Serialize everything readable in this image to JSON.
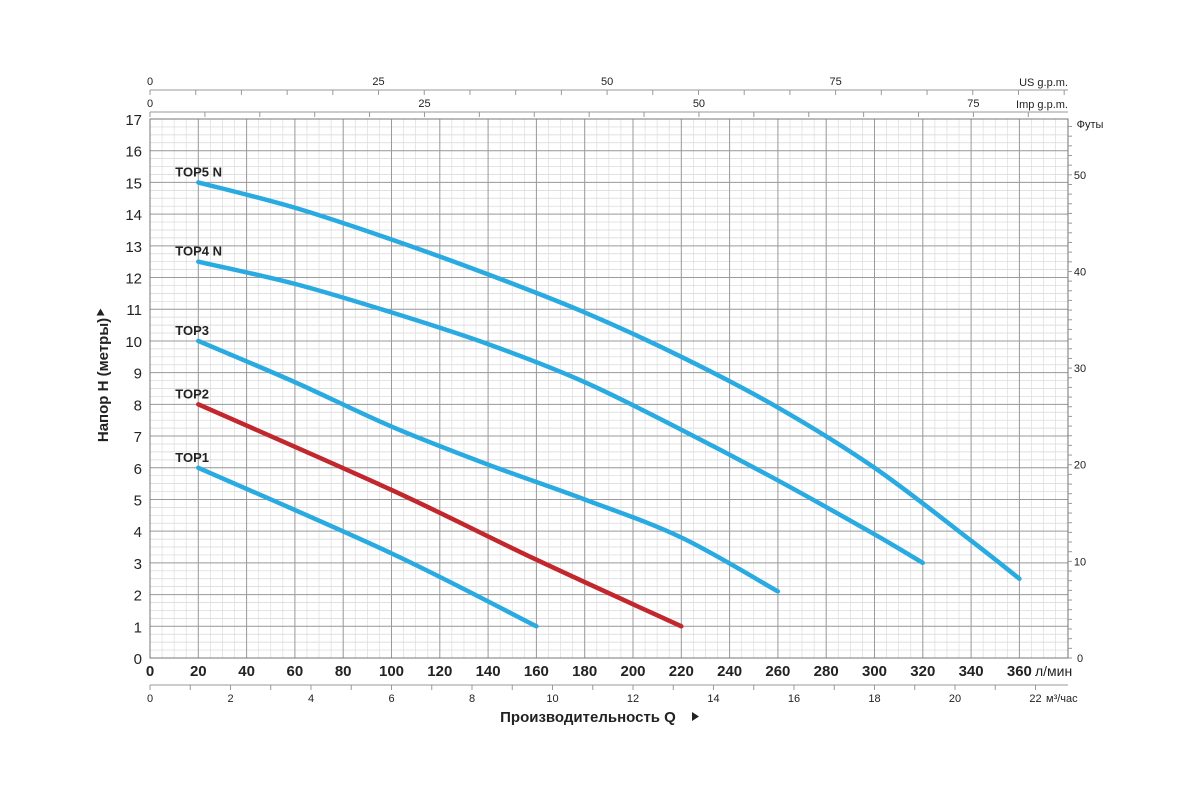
{
  "chart_data": {
    "type": "line",
    "xlabel": "Производительность Q",
    "ylabel": "Напор H (метры)",
    "x_unit": "л/мин",
    "x_range": [
      0,
      380
    ],
    "x_ticks": [
      0,
      20,
      40,
      60,
      80,
      100,
      120,
      140,
      160,
      180,
      200,
      220,
      240,
      260,
      280,
      300,
      320,
      340,
      360
    ],
    "y_range": [
      0,
      17
    ],
    "y_ticks": [
      0,
      1,
      2,
      3,
      4,
      5,
      6,
      7,
      8,
      9,
      10,
      11,
      12,
      13,
      14,
      15,
      16,
      17
    ],
    "grid": true,
    "right_axis": {
      "label": "Футы",
      "ticks": [
        0,
        10,
        20,
        30,
        40,
        50
      ]
    },
    "top_axes": [
      {
        "label": "US g.p.m.",
        "ticks": [
          0,
          25,
          50,
          75
        ]
      },
      {
        "label": "Imp g.p.m.",
        "ticks": [
          0,
          25,
          50,
          75
        ]
      }
    ],
    "bottom_axis2": {
      "label": "м³/час",
      "ticks": [
        0,
        2,
        4,
        6,
        8,
        10,
        12,
        14,
        16,
        18,
        20,
        22
      ]
    },
    "series": [
      {
        "name": "TOP1",
        "color": "#29abe2",
        "x": [
          20,
          100,
          160
        ],
        "y": [
          6,
          3.3,
          1
        ]
      },
      {
        "name": "TOP2",
        "color": "#c1272d",
        "x": [
          20,
          100,
          160,
          220
        ],
        "y": [
          8,
          5.3,
          3.1,
          1
        ]
      },
      {
        "name": "TOP3",
        "color": "#29abe2",
        "x": [
          20,
          60,
          100,
          140,
          180,
          220,
          260
        ],
        "y": [
          10,
          8.7,
          7.3,
          6.1,
          5,
          3.8,
          2.1
        ]
      },
      {
        "name": "TOP4 N",
        "color": "#29abe2",
        "x": [
          20,
          60,
          100,
          140,
          180,
          220,
          260,
          300,
          320
        ],
        "y": [
          12.5,
          11.8,
          10.9,
          9.9,
          8.7,
          7.2,
          5.6,
          3.9,
          3
        ]
      },
      {
        "name": "TOP5 N",
        "color": "#29abe2",
        "x": [
          20,
          60,
          100,
          140,
          180,
          220,
          260,
          300,
          340,
          360
        ],
        "y": [
          15,
          14.2,
          13.2,
          12.1,
          10.9,
          9.5,
          7.9,
          6,
          3.7,
          2.5
        ]
      }
    ]
  }
}
